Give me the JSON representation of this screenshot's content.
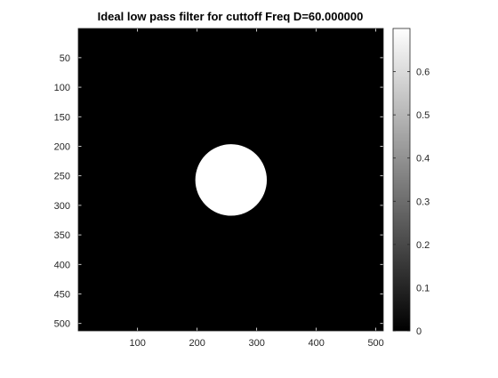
{
  "chart_data": {
    "type": "heatmap",
    "title": "Ideal low pass filter for cuttoff Freq D=60.000000",
    "xlabel": "",
    "ylabel": "",
    "image_size": [
      512,
      512
    ],
    "x_range": [
      1,
      512
    ],
    "y_range": [
      1,
      512
    ],
    "y_direction": "reversed",
    "x_ticks": [
      100,
      200,
      300,
      400,
      500
    ],
    "x_tick_labels": [
      "100",
      "200",
      "300",
      "400",
      "500"
    ],
    "y_ticks": [
      50,
      100,
      150,
      200,
      250,
      300,
      350,
      400,
      450,
      500
    ],
    "y_tick_labels": [
      "50",
      "100",
      "150",
      "200",
      "250",
      "300",
      "350",
      "400",
      "450",
      "500"
    ],
    "filter": {
      "shape": "disk",
      "center": [
        257,
        257
      ],
      "radius": 60,
      "inside_value": 0.7,
      "outside_value": 0
    },
    "colormap": "gray",
    "clim": [
      0,
      0.7
    ],
    "colorbar": {
      "location": "right",
      "ticks": [
        0,
        0.1,
        0.2,
        0.3,
        0.4,
        0.5,
        0.6
      ],
      "tick_labels": [
        "0",
        "0.1",
        "0.2",
        "0.3",
        "0.4",
        "0.5",
        "0.6"
      ]
    },
    "grid": false
  }
}
